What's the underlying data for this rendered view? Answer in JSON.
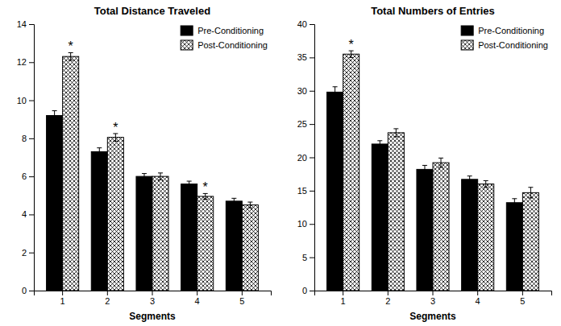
{
  "chart_data": [
    {
      "type": "bar",
      "title": "Total Distance Traveled",
      "xlabel": "Segments",
      "categories": [
        "1",
        "2",
        "3",
        "4",
        "5"
      ],
      "series": [
        {
          "name": "Pre-Conditioning",
          "color": "#000000",
          "values": [
            9.2,
            7.3,
            6.0,
            5.6,
            4.7
          ],
          "errors": [
            0.25,
            0.2,
            0.15,
            0.15,
            0.15
          ]
        },
        {
          "name": "Post-Conditioning",
          "color": "#ffffff",
          "values": [
            12.3,
            8.05,
            6.0,
            4.95,
            4.5
          ],
          "errors": [
            0.2,
            0.2,
            0.18,
            0.15,
            0.15
          ]
        }
      ],
      "annotations": [
        {
          "text": "*",
          "x": "1",
          "series": "Post-Conditioning"
        },
        {
          "text": "*",
          "x": "2",
          "series": "Post-Conditioning"
        },
        {
          "text": "*",
          "x": "4",
          "series": "Post-Conditioning"
        }
      ],
      "ylim": [
        0,
        14
      ],
      "yticks": [
        0,
        2,
        4,
        6,
        8,
        10,
        12,
        14
      ],
      "grid": false,
      "legend": "upper right"
    },
    {
      "type": "bar",
      "title": "Total Numbers of Entries",
      "xlabel": "Segments",
      "categories": [
        "1",
        "2",
        "3",
        "4",
        "5"
      ],
      "series": [
        {
          "name": "Pre-Conditioning",
          "color": "#000000",
          "values": [
            29.8,
            22.0,
            18.2,
            16.7,
            13.2
          ],
          "errors": [
            0.8,
            0.5,
            0.6,
            0.5,
            0.6
          ]
        },
        {
          "name": "Post-Conditioning",
          "color": "#ffffff",
          "values": [
            35.5,
            23.7,
            19.2,
            16.0,
            14.7
          ],
          "errors": [
            0.5,
            0.6,
            0.7,
            0.5,
            0.8
          ]
        }
      ],
      "annotations": [
        {
          "text": "*",
          "x": "1",
          "series": "Post-Conditioning"
        }
      ],
      "ylim": [
        0,
        40
      ],
      "yticks": [
        0,
        5,
        10,
        15,
        20,
        25,
        30,
        35,
        40
      ],
      "grid": false,
      "legend": "upper right"
    }
  ]
}
